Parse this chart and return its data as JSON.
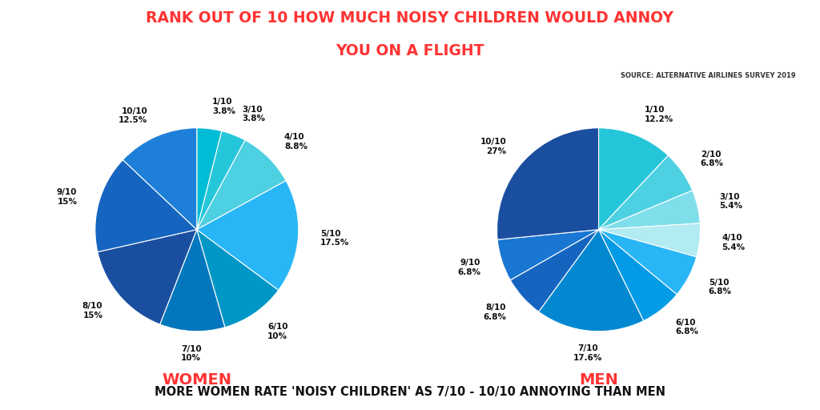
{
  "title_line1": "RANK OUT OF 10 HOW MUCH NOISY CHILDREN WOULD ANNOY",
  "title_line2": "YOU ON A FLIGHT",
  "source": "SOURCE: ALTERNATIVE AIRLINES SURVEY 2019",
  "subtitle": "MORE WOMEN RATE 'NOISY CHILDREN' AS 7/10 - 10/10 ANNOYING THAN MEN",
  "women_label": "WOMEN",
  "men_label": "MEN",
  "women_labels": [
    "1/10",
    "3/10",
    "4/10",
    "5/10",
    "6/10",
    "7/10",
    "8/10",
    "9/10",
    "10/10"
  ],
  "women_values": [
    3.8,
    3.8,
    8.8,
    17.5,
    10.0,
    10.0,
    15.0,
    15.0,
    12.5
  ],
  "women_pct_labels": [
    "3.8%",
    "3.8%",
    "8.8%",
    "17.5%",
    "10%",
    "10%",
    "15%",
    "15%",
    "12.5%"
  ],
  "women_colors": [
    "#00BCD4",
    "#26C6DA",
    "#4DD0E1",
    "#29B6F6",
    "#0097C7",
    "#0277BD",
    "#1A4FA0",
    "#1565C0",
    "#1E7FD8"
  ],
  "men_labels": [
    "1/10",
    "2/10",
    "3/10",
    "4/10",
    "5/10",
    "6/10",
    "7/10",
    "8/10",
    "9/10",
    "10/10"
  ],
  "men_values": [
    12.2,
    6.8,
    5.4,
    5.4,
    6.8,
    6.8,
    17.6,
    6.8,
    6.8,
    27.0
  ],
  "men_pct_labels": [
    "12.2%",
    "6.8%",
    "5.4%",
    "5.4%",
    "6.8%",
    "6.8%",
    "17.6%",
    "6.8%",
    "6.8%",
    "27%"
  ],
  "men_colors": [
    "#26C6DA",
    "#4DD0E1",
    "#80DEEA",
    "#B2EBF2",
    "#29B6F6",
    "#039BE5",
    "#0288D1",
    "#1565C0",
    "#1976D2",
    "#1A4FA0"
  ],
  "title_color": "#FF3333",
  "subtitle_color": "#111111",
  "source_color": "#333333",
  "women_men_color": "#FF3333",
  "background_color": "#FFFFFF",
  "text_color": "#111111"
}
